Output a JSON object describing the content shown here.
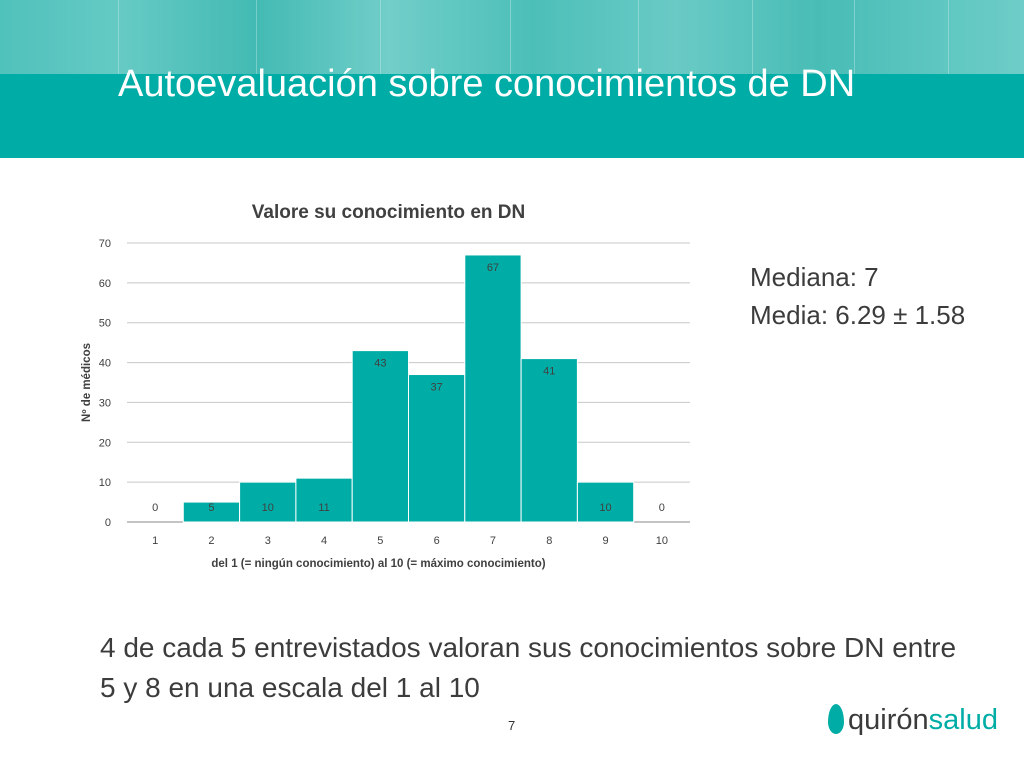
{
  "slide": {
    "title": "Autoevaluación sobre conocimientos de DN",
    "page_number": "7",
    "colors": {
      "banner": "#00ada6",
      "bar": "#00ada6",
      "text": "#3c3c3c"
    }
  },
  "stats": {
    "median": "Mediana: 7",
    "mean": "Media: 6.29 ± 1.58"
  },
  "conclusion": "4 de cada 5 entrevistados valoran sus conocimientos sobre DN entre 5 y 8 en una escala del 1 al 10",
  "logo": {
    "part1": "quirón",
    "part2": "salud"
  },
  "chart_data": {
    "type": "bar",
    "title": "Valore su conocimiento en DN",
    "xlabel": "del 1 (= ningún conocimiento) al 10 (= máximo conocimiento)",
    "ylabel": "Nº de médicos",
    "categories": [
      "1",
      "2",
      "3",
      "4",
      "5",
      "6",
      "7",
      "8",
      "9",
      "10"
    ],
    "values": [
      0,
      5,
      10,
      11,
      43,
      37,
      67,
      41,
      10,
      0
    ],
    "ylim": [
      0,
      70
    ],
    "yticks": [
      0,
      10,
      20,
      30,
      40,
      50,
      60,
      70
    ],
    "grid": true,
    "legend": "none",
    "bar_color": "#00ada6"
  }
}
